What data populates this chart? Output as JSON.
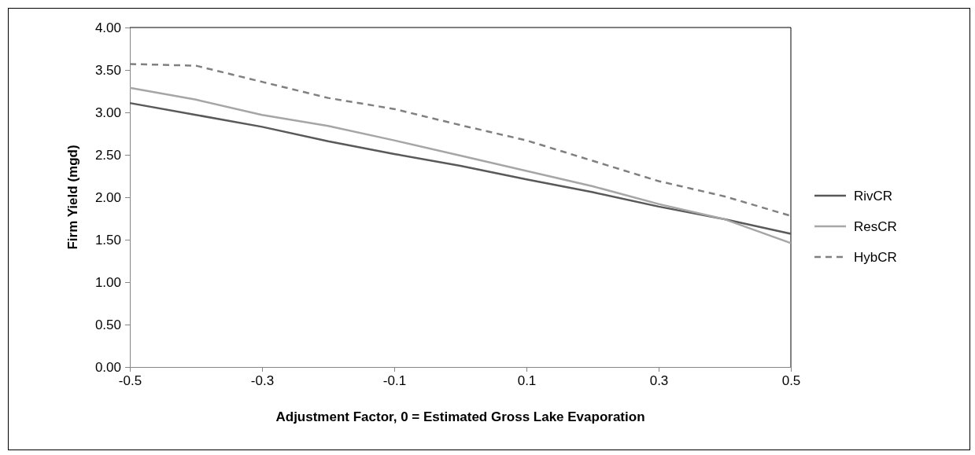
{
  "chart_data": {
    "type": "line",
    "xlabel": "Adjustment Factor, 0 = Estimated Gross Lake Evaporation",
    "ylabel": "Firm Yield (mgd)",
    "x": [
      -0.5,
      -0.4,
      -0.3,
      -0.2,
      -0.1,
      0,
      0.1,
      0.2,
      0.3,
      0.4,
      0.5
    ],
    "series": [
      {
        "name": "RivCR",
        "color": "#595959",
        "line_style": "solid",
        "values": [
          3.11,
          2.97,
          2.83,
          2.66,
          2.51,
          2.37,
          2.21,
          2.06,
          1.89,
          1.74,
          1.57
        ]
      },
      {
        "name": "ResCR",
        "color": "#a6a6a6",
        "line_style": "solid",
        "values": [
          3.29,
          3.15,
          2.97,
          2.84,
          2.67,
          2.49,
          2.31,
          2.13,
          1.92,
          1.74,
          1.46
        ]
      },
      {
        "name": "HybCR",
        "color": "#808080",
        "line_style": "dashed",
        "values": [
          3.57,
          3.55,
          3.36,
          3.17,
          3.04,
          2.85,
          2.67,
          2.43,
          2.19,
          2.01,
          1.78
        ]
      }
    ],
    "xlim": [
      -0.5,
      0.5
    ],
    "xticks": [
      -0.5,
      -0.3,
      -0.1,
      0.1,
      0.3,
      0.5
    ],
    "ylim": [
      0,
      4
    ],
    "yticks": [
      {
        "value": 0,
        "label": "0.00"
      },
      {
        "value": 0.5,
        "label": "0.50"
      },
      {
        "value": 1,
        "label": "1.00"
      },
      {
        "value": 1.5,
        "label": "1.50"
      },
      {
        "value": 2,
        "label": "2.00"
      },
      {
        "value": 2.5,
        "label": "2.50"
      },
      {
        "value": 3,
        "label": "3.00"
      },
      {
        "value": 3.5,
        "label": "3.50"
      },
      {
        "value": 4,
        "label": "4.00"
      }
    ],
    "grid": false,
    "legend": "right",
    "marker": "none"
  }
}
